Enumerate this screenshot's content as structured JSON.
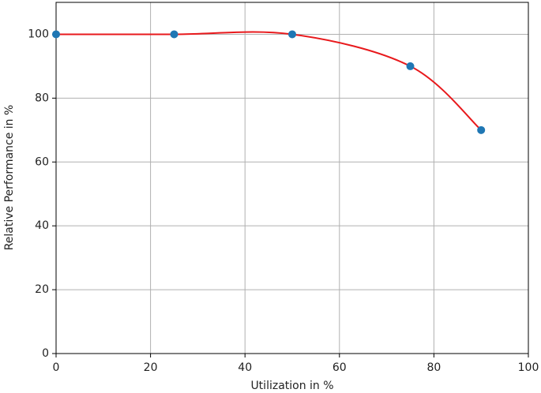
{
  "chart_data": {
    "type": "scatter",
    "x_label": "Utilization in %",
    "y_label": "Relative Performance in %",
    "x": [
      0,
      25,
      50,
      75,
      90
    ],
    "series": [
      {
        "values": [
          100,
          100,
          100,
          90,
          70
        ],
        "color": "#1f77b4",
        "line_color": "#e8191c",
        "smooth": true
      }
    ],
    "xlim": [
      0,
      100
    ],
    "ylim": [
      0,
      110
    ],
    "xticks": [
      0,
      20,
      40,
      60,
      80,
      100
    ],
    "yticks": [
      0,
      20,
      40,
      60,
      80,
      100
    ],
    "grid": true
  }
}
